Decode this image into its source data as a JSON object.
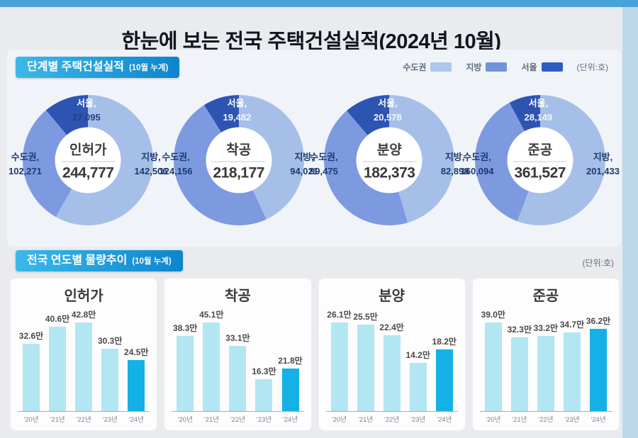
{
  "page": {
    "title": "한눈에 보는 전국 주택건설실적(2024년 10월)"
  },
  "legend": {
    "items": [
      {
        "label": "수도권",
        "color": "#aec6ee"
      },
      {
        "label": "지방",
        "color": "#7191d8"
      },
      {
        "label": "서울",
        "color": "#2f5cc2"
      }
    ],
    "unit": "(단위:호)"
  },
  "stage_section": {
    "header": "단계별 주택건설실적",
    "header_sub": "(10월 누계)"
  },
  "trend_section": {
    "header": "전국 연도별 물량추이",
    "header_sub": "(10월 누계)",
    "unit": "(단위:호)"
  },
  "colors": {
    "top_strip": "#49a3da",
    "right_strip": "#bdd8eb",
    "badge_gradient_start": "#3cb9e9",
    "badge_gradient_end": "#0d85cc",
    "donut_region_slice": "#a6bfe9",
    "donut_capital_slice": "#7d9ae0",
    "donut_seoul_slice": "#2e54b2",
    "bar_default": "#b2e6f2",
    "bar_highlight": "#14b1e7"
  },
  "chart_data": {
    "donuts": [
      {
        "type": "donut",
        "title": "인허가",
        "total": 244777,
        "total_label": "244,777",
        "seoul": {
          "label": "서울,",
          "value": 27095,
          "value_label": "27,095"
        },
        "capital": {
          "label": "수도권,",
          "value": 102271,
          "value_label": "102,271"
        },
        "region": {
          "label": "지방,",
          "value": 142506,
          "value_label": "142,506"
        },
        "note": "수도권 value includes 서울; unit: 호"
      },
      {
        "type": "donut",
        "title": "착공",
        "total": 218177,
        "total_label": "218,177",
        "seoul": {
          "label": "서울,",
          "value": 19482,
          "value_label": "19,482"
        },
        "capital": {
          "label": "수도권,",
          "value": 124156,
          "value_label": "124,156"
        },
        "region": {
          "label": "지방,",
          "value": 94021,
          "value_label": "94,021"
        },
        "note": "수도권 value includes 서울; unit: 호"
      },
      {
        "type": "donut",
        "title": "분양",
        "total": 182373,
        "total_label": "182,373",
        "seoul": {
          "label": "서울,",
          "value": 20578,
          "value_label": "20,578"
        },
        "capital": {
          "label": "수도권,",
          "value": 99475,
          "value_label": "99,475"
        },
        "region": {
          "label": "지방,",
          "value": 82898,
          "value_label": "82,898"
        },
        "note": "수도권 value includes 서울; unit: 호"
      },
      {
        "type": "donut",
        "title": "준공",
        "total": 361527,
        "total_label": "361,527",
        "seoul": {
          "label": "서울,",
          "value": 28149,
          "value_label": "28,149"
        },
        "capital": {
          "label": "수도권,",
          "value": 160094,
          "value_label": "160,094"
        },
        "region": {
          "label": "지방,",
          "value": 201433,
          "value_label": "201,433"
        },
        "note": "수도권 value includes 서울; unit: 호"
      }
    ],
    "bars": [
      {
        "type": "bar",
        "title": "인허가",
        "categories": [
          "'20년",
          "'21년",
          "'22년",
          "'23년",
          "'24년"
        ],
        "values": [
          32.6,
          40.6,
          42.8,
          30.3,
          24.5
        ],
        "value_labels": [
          "32.6만",
          "40.6만",
          "42.8만",
          "30.3만",
          "24.5만"
        ],
        "highlight_index": 4,
        "value_unit": "만 호"
      },
      {
        "type": "bar",
        "title": "착공",
        "categories": [
          "'20년",
          "'21년",
          "'22년",
          "'23년",
          "'24년"
        ],
        "values": [
          38.3,
          45.1,
          33.1,
          16.3,
          21.8
        ],
        "value_labels": [
          "38.3만",
          "45.1만",
          "33.1만",
          "16.3만",
          "21.8만"
        ],
        "highlight_index": 4,
        "value_unit": "만 호"
      },
      {
        "type": "bar",
        "title": "분양",
        "categories": [
          "'20년",
          "'21년",
          "'22년",
          "'23년",
          "'24년"
        ],
        "values": [
          26.1,
          25.5,
          22.4,
          14.2,
          18.2
        ],
        "value_labels": [
          "26.1만",
          "25.5만",
          "22.4만",
          "14.2만",
          "18.2만"
        ],
        "highlight_index": 4,
        "value_unit": "만 호"
      },
      {
        "type": "bar",
        "title": "준공",
        "categories": [
          "'20년",
          "'21년",
          "'22년",
          "'23년",
          "'24년"
        ],
        "values": [
          39.0,
          32.3,
          33.2,
          34.7,
          36.2
        ],
        "value_labels": [
          "39.0만",
          "32.3만",
          "33.2만",
          "34.7만",
          "36.2만"
        ],
        "highlight_index": 4,
        "value_unit": "만 호"
      }
    ]
  }
}
